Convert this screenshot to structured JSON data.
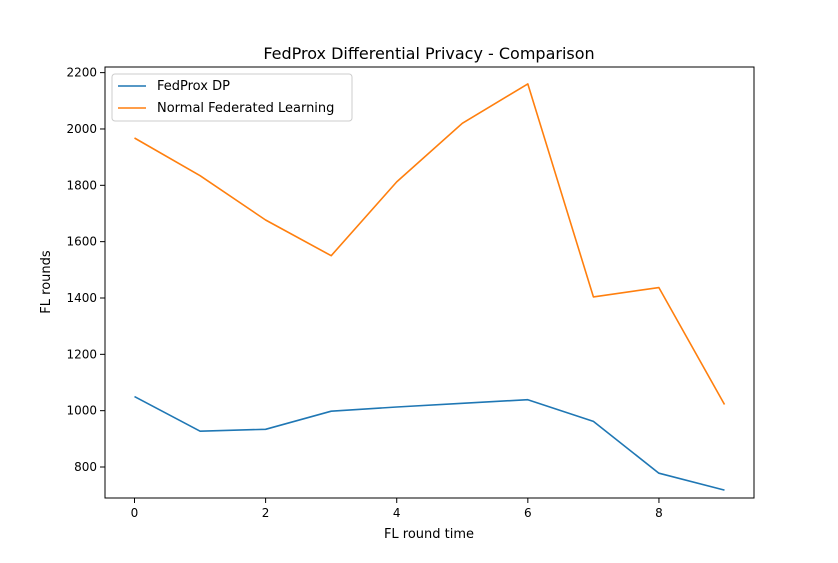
{
  "chart_data": {
    "type": "line",
    "title": "FedProx Differential Privacy - Comparison",
    "xlabel": "FL round time",
    "ylabel": "FL rounds",
    "xlim": [
      -0.45,
      9.45
    ],
    "ylim": [
      690,
      2220
    ],
    "xticks": [
      0,
      2,
      4,
      6,
      8
    ],
    "yticks": [
      800,
      1000,
      1200,
      1400,
      1600,
      1800,
      2000,
      2200
    ],
    "grid": false,
    "legend_position": "upper left",
    "x": [
      0,
      1,
      2,
      3,
      4,
      5,
      6,
      7,
      8,
      9
    ],
    "series": [
      {
        "name": "FedProx DP",
        "color": "#1f77b4",
        "values": [
          1050,
          927,
          934,
          998,
          1013,
          1026,
          1039,
          962,
          778,
          718
        ]
      },
      {
        "name": "Normal Federated Learning",
        "color": "#ff7f0e",
        "values": [
          1968,
          1834,
          1677,
          1550,
          1812,
          2020,
          2160,
          1404,
          1437,
          1022
        ]
      }
    ]
  }
}
